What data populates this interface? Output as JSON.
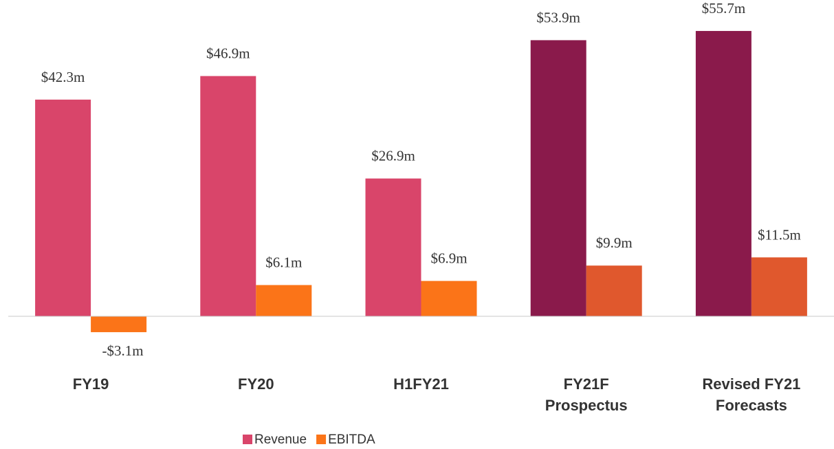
{
  "chart_data": {
    "type": "bar",
    "categories": [
      "FY19",
      "FY20",
      "H1FY21",
      "FY21F Prospectus",
      "Revised FY21 Forecasts"
    ],
    "series": [
      {
        "name": "Revenue",
        "color": "#d9456a",
        "colors": [
          "#d9456a",
          "#d9456a",
          "#d9456a",
          "#8a1a4b",
          "#8a1a4b"
        ],
        "values": [
          42.3,
          46.9,
          26.9,
          53.9,
          55.7
        ],
        "value_labels": [
          "$42.3m",
          "$46.9m",
          "$26.9m",
          "$53.9m",
          "$55.7m"
        ]
      },
      {
        "name": "EBITDA",
        "color": "#fb7418",
        "colors": [
          "#fb7418",
          "#fb7418",
          "#fb7418",
          "#e0582d",
          "#e0582d"
        ],
        "values": [
          -3.1,
          6.1,
          6.9,
          9.9,
          11.5
        ],
        "value_labels": [
          "-$3.1m",
          "$6.1m",
          "$6.9m",
          "$9.9m",
          "$11.5m"
        ]
      }
    ],
    "ylim": [
      -10,
      60
    ],
    "legend": "bottom"
  }
}
